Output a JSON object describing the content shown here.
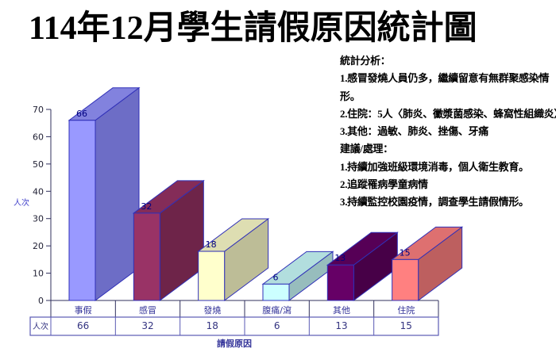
{
  "title": "114年12月學生請假原因統計圖",
  "analysis": {
    "lines": [
      "統計分析：",
      "1.感冒發燒人員仍多，繼續留意有無群聚感染情形。",
      "2.住院：5人〈肺炎、黴漿菌感染、蜂窩性組織炎〉",
      "3.其他：過敏、肺炎、挫傷、牙痛",
      "建議/處理：",
      "1.持續加強班級環境消毒，個人衛生教育。",
      "2.追蹤罹病學童病情",
      "3.持續監控校園疫情，調查學生請假情形。"
    ]
  },
  "chart_data": {
    "type": "bar",
    "projection": "3d",
    "title": "114年12月學生請假原因統計圖",
    "categories": [
      "事假",
      "感冒",
      "發燒",
      "腹痛/瀉",
      "其他",
      "住院"
    ],
    "values": [
      66,
      32,
      18,
      6,
      13,
      15
    ],
    "xlabel": "請假原因",
    "ylabel": "人次",
    "ylim": [
      0,
      70
    ],
    "ytick_step": 10,
    "grid": false,
    "legend": false,
    "data_table_row_label": "人次",
    "bar_colors": [
      {
        "front": "#9999FF",
        "side": "#6D6DC6",
        "top": "#8282DE"
      },
      {
        "front": "#993366",
        "side": "#6E2449",
        "top": "#842C58"
      },
      {
        "front": "#FFFFCC",
        "side": "#BDBD97",
        "top": "#DEDEB2"
      },
      {
        "front": "#CCFFFF",
        "side": "#97BDBD",
        "top": "#B2DEDE"
      },
      {
        "front": "#660066",
        "side": "#470047",
        "top": "#560056"
      },
      {
        "front": "#FF8080",
        "side": "#BD5F5F",
        "top": "#DE7070"
      }
    ],
    "colors": {
      "bar_edge": "#3030B8",
      "value_label": "#000080",
      "axis_line": "#31315E",
      "tick_text": "#1E1E32",
      "category_text": "#333399",
      "axis_title": "#4444CC",
      "table_border": "#5A5AB4",
      "table_text": "#333380"
    }
  }
}
